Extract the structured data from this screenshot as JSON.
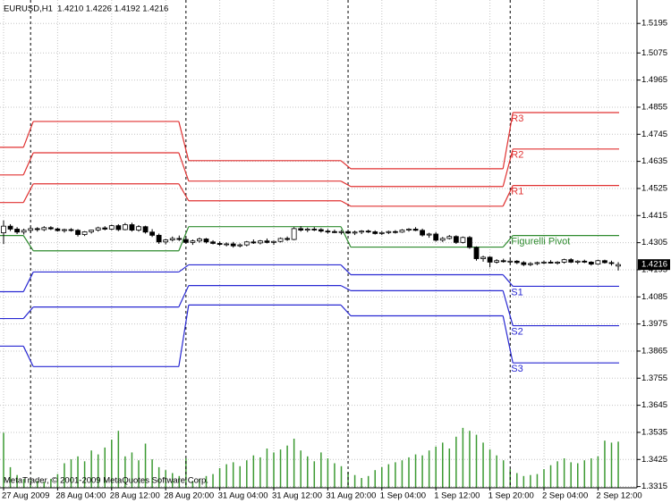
{
  "chart_data": {
    "type": "candlestick",
    "title": "EURUSD,H1  1.4210 1.4226 1.4192 1.4216",
    "footer": "MetaTrader, © 2001-2009 MetaQuotes Software Corp.",
    "categories": [
      "27 Aug 2009",
      null,
      null,
      null,
      null,
      null,
      null,
      null,
      "28 Aug 04:00",
      null,
      null,
      null,
      null,
      null,
      null,
      null,
      "28 Aug 12:00",
      null,
      null,
      null,
      null,
      null,
      null,
      null,
      "28 Aug 20:00",
      null,
      null,
      null,
      null,
      null,
      null,
      null,
      "31 Aug 04:00",
      null,
      null,
      null,
      null,
      null,
      null,
      null,
      "31 Aug 12:00",
      null,
      null,
      null,
      null,
      null,
      null,
      null,
      "31 Aug 20:00",
      null,
      null,
      null,
      null,
      null,
      null,
      null,
      "1 Sep 04:00",
      null,
      null,
      null,
      null,
      null,
      null,
      null,
      "1 Sep 12:00",
      null,
      null,
      null,
      null,
      null,
      null,
      null,
      "1 Sep 20:00",
      null,
      null,
      null,
      null,
      null,
      null,
      null,
      "2 Sep 04:00",
      null,
      null,
      null,
      null,
      null,
      null,
      null,
      "2 Sep 12:00",
      null,
      null,
      null
    ],
    "open": [
      1.4345,
      1.4372,
      1.436,
      1.4348,
      1.4355,
      1.4362,
      1.4358,
      1.4366,
      1.4361,
      1.4354,
      1.4358,
      1.4355,
      1.4338,
      1.4349,
      1.4356,
      1.4365,
      1.436,
      1.4374,
      1.4358,
      1.4378,
      1.4356,
      1.437,
      1.4348,
      1.4335,
      1.4308,
      1.4316,
      1.4322,
      1.4318,
      1.4306,
      1.4312,
      1.432,
      1.4308,
      1.4302,
      1.4298,
      1.43,
      1.4292,
      1.4296,
      1.4308,
      1.4304,
      1.4312,
      1.4306,
      1.431,
      1.4322,
      1.4318,
      1.4362,
      1.4356,
      1.436,
      1.4358,
      1.4352,
      1.435,
      1.4346,
      1.435,
      1.4344,
      1.4348,
      1.4352,
      1.4349,
      1.4342,
      1.4346,
      1.435,
      1.4348,
      1.4356,
      1.436,
      1.4355,
      1.4336,
      1.434,
      1.4315,
      1.4322,
      1.433,
      1.4306,
      1.4326,
      1.4286,
      1.424,
      1.4246,
      1.4226,
      1.4232,
      1.4228,
      1.423,
      1.4224,
      1.4216,
      1.422,
      1.4224,
      1.4226,
      1.4222,
      1.4226,
      1.4236,
      1.4226,
      1.423,
      1.4226,
      1.4218,
      1.4232,
      1.4224,
      1.421
    ],
    "high": [
      1.4395,
      1.438,
      1.4368,
      1.4362,
      1.437,
      1.4368,
      1.4372,
      1.4372,
      1.4366,
      1.4362,
      1.4364,
      1.436,
      1.4352,
      1.4358,
      1.437,
      1.4372,
      1.4378,
      1.438,
      1.4385,
      1.4386,
      1.4376,
      1.4374,
      1.436,
      1.4342,
      1.432,
      1.433,
      1.4334,
      1.433,
      1.4318,
      1.4326,
      1.4324,
      1.4315,
      1.431,
      1.4306,
      1.4308,
      1.4302,
      1.4312,
      1.4318,
      1.4316,
      1.4322,
      1.4314,
      1.4326,
      1.433,
      1.4368,
      1.4372,
      1.4366,
      1.4368,
      1.4364,
      1.436,
      1.4358,
      1.4356,
      1.4358,
      1.4354,
      1.4356,
      1.4358,
      1.4355,
      1.4352,
      1.4354,
      1.4356,
      1.436,
      1.4364,
      1.4368,
      1.4362,
      1.4345,
      1.4348,
      1.4328,
      1.4336,
      1.4335,
      1.433,
      1.4332,
      1.429,
      1.4252,
      1.425,
      1.4238,
      1.424,
      1.4236,
      1.4234,
      1.423,
      1.4226,
      1.4228,
      1.4232,
      1.4234,
      1.423,
      1.424,
      1.4242,
      1.4234,
      1.4236,
      1.423,
      1.4236,
      1.4236,
      1.4232,
      1.4226
    ],
    "low": [
      1.43,
      1.4352,
      1.434,
      1.4338,
      1.4345,
      1.435,
      1.4352,
      1.4356,
      1.435,
      1.4346,
      1.435,
      1.433,
      1.4332,
      1.4342,
      1.435,
      1.4355,
      1.4356,
      1.4352,
      1.4355,
      1.435,
      1.435,
      1.4342,
      1.4328,
      1.43,
      1.4298,
      1.431,
      1.4312,
      1.43,
      1.4296,
      1.4305,
      1.4302,
      1.4298,
      1.4292,
      1.429,
      1.4285,
      1.4286,
      1.429,
      1.43,
      1.4298,
      1.4302,
      1.4296,
      1.4306,
      1.4312,
      1.4315,
      1.435,
      1.4348,
      1.4352,
      1.4346,
      1.4342,
      1.4344,
      1.4338,
      1.434,
      1.4336,
      1.434,
      1.4344,
      1.4338,
      1.4336,
      1.434,
      1.4342,
      1.4345,
      1.435,
      1.4352,
      1.433,
      1.4325,
      1.431,
      1.4308,
      1.4318,
      1.43,
      1.4302,
      1.428,
      1.4232,
      1.4228,
      1.4205,
      1.422,
      1.4224,
      1.422,
      1.4218,
      1.421,
      1.421,
      1.4214,
      1.4218,
      1.422,
      1.4216,
      1.422,
      1.4222,
      1.4218,
      1.4222,
      1.4212,
      1.4215,
      1.422,
      1.4212,
      1.4192
    ],
    "close": [
      1.4372,
      1.436,
      1.4348,
      1.4355,
      1.4362,
      1.4358,
      1.4366,
      1.4361,
      1.4354,
      1.4358,
      1.4355,
      1.4338,
      1.4349,
      1.4356,
      1.4365,
      1.436,
      1.4374,
      1.4358,
      1.4378,
      1.4356,
      1.437,
      1.4348,
      1.4335,
      1.4308,
      1.4316,
      1.4322,
      1.4318,
      1.4306,
      1.4312,
      1.432,
      1.4308,
      1.4302,
      1.4298,
      1.43,
      1.4292,
      1.4296,
      1.4308,
      1.4304,
      1.4312,
      1.4306,
      1.431,
      1.4322,
      1.4318,
      1.4362,
      1.4356,
      1.436,
      1.4358,
      1.4352,
      1.435,
      1.4346,
      1.435,
      1.4344,
      1.4348,
      1.4352,
      1.4349,
      1.4342,
      1.4346,
      1.435,
      1.4348,
      1.4356,
      1.436,
      1.4355,
      1.4336,
      1.434,
      1.4315,
      1.4322,
      1.433,
      1.4306,
      1.4326,
      1.4286,
      1.424,
      1.4246,
      1.4226,
      1.4232,
      1.4228,
      1.423,
      1.4224,
      1.4216,
      1.422,
      1.4224,
      1.4226,
      1.4222,
      1.4226,
      1.4236,
      1.4226,
      1.423,
      1.4226,
      1.4218,
      1.4232,
      1.4224,
      1.4222,
      1.4216
    ],
    "bull_color": "#ffffff",
    "bear_color": "#000000",
    "ylim": [
      1.331,
      1.529
    ],
    "yticks": [
      1.5195,
      1.5075,
      1.4965,
      1.4855,
      1.4745,
      1.4635,
      1.4525,
      1.4415,
      1.4305,
      1.4195,
      1.4085,
      1.3975,
      1.3865,
      1.3755,
      1.3645,
      1.3535,
      1.3425,
      1.3315
    ],
    "grid": true,
    "last_price": {
      "value": 1.4216,
      "label": "1.4216"
    },
    "volume": {
      "color": "#3c9a32",
      "ylim": [
        0,
        10000
      ],
      "values": [
        5600,
        2100,
        1300,
        900,
        800,
        700,
        600,
        900,
        1400,
        2500,
        2900,
        3200,
        2700,
        3800,
        3400,
        4100,
        4900,
        5800,
        3200,
        3600,
        2800,
        4500,
        2900,
        2100,
        1800,
        1500,
        1200,
        3000,
        700,
        900,
        1200,
        1400,
        2000,
        2400,
        2600,
        2200,
        2800,
        3300,
        3100,
        4000,
        3600,
        3900,
        4300,
        5000,
        3800,
        3200,
        2700,
        3600,
        3000,
        2500,
        2200,
        1600,
        1300,
        1000,
        1200,
        1800,
        2100,
        2400,
        2600,
        2800,
        3100,
        3400,
        3300,
        3800,
        4200,
        4600,
        4000,
        5200,
        6100,
        5800,
        5400,
        4600,
        3900,
        3300,
        2800,
        1900,
        1500,
        1200,
        1300,
        1400,
        1900,
        2300,
        2700,
        3000,
        2600,
        2500,
        2800,
        3000,
        3200,
        4800,
        4600,
        4700
      ]
    },
    "pivots": {
      "x": [
        0,
        4,
        27,
        51,
        75
      ],
      "series": [
        {
          "name": "R3",
          "color": "#e03232",
          "values": [
            1.4692,
            1.4797,
            1.4638,
            1.4605,
            1.4833
          ]
        },
        {
          "name": "R2",
          "color": "#e03232",
          "values": [
            1.458,
            1.467,
            1.4555,
            1.4533,
            1.4685
          ]
        },
        {
          "name": "R1",
          "color": "#e03232",
          "values": [
            1.4468,
            1.4544,
            1.4475,
            1.4453,
            1.4537
          ]
        },
        {
          "name": "Figurelli Pivot",
          "color": "#2e8b2e",
          "values": [
            1.4334,
            1.4272,
            1.437,
            1.4287,
            1.4334
          ]
        },
        {
          "name": "S1",
          "color": "#2828d2",
          "values": [
            1.4106,
            1.4186,
            1.4215,
            1.4175,
            1.4128
          ]
        },
        {
          "name": "S2",
          "color": "#2828d2",
          "values": [
            1.3997,
            1.4044,
            1.4131,
            1.411,
            1.3968
          ]
        },
        {
          "name": "S3",
          "color": "#2828d2",
          "values": [
            1.3885,
            1.3802,
            1.4052,
            1.4008,
            1.3817
          ]
        }
      ]
    }
  }
}
